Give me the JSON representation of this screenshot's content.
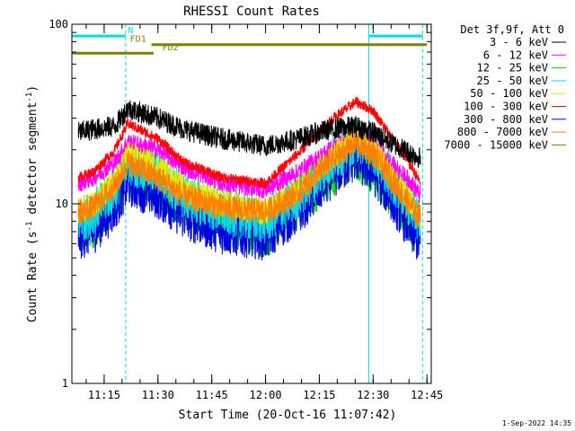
{
  "chart_data": {
    "type": "line",
    "title": "RHESSI Count Rates",
    "xlabel": "Start Time (20-Oct-16 11:07:42)",
    "ylabel_main": "Count Rate (s",
    "ylabel_sup1": "-1",
    "ylabel_mid": " detector segment",
    "ylabel_sup2": "-1",
    "ylabel_end": ")",
    "yscale": "log",
    "ylim": [
      1,
      100
    ],
    "xlim_minutes": [
      11.1,
      12.77
    ],
    "y_tick_labels": [
      {
        "label": "100",
        "value": 100
      },
      {
        "label": "10",
        "value": 10
      },
      {
        "label": "1",
        "value": 1
      }
    ],
    "x_tick_labels": [
      {
        "label": "11:15",
        "value": 11.25
      },
      {
        "label": "11:30",
        "value": 11.5
      },
      {
        "label": "11:45",
        "value": 11.75
      },
      {
        "label": "12:00",
        "value": 12.0
      },
      {
        "label": "12:15",
        "value": 12.25
      },
      {
        "label": "12:30",
        "value": 12.5
      },
      {
        "label": "12:45",
        "value": 12.75
      }
    ],
    "legend_header": "Det 3f,9f, Att 0",
    "legend_position": "right",
    "series": [
      {
        "name": "3 - 6 keV",
        "color": "#000000",
        "x": [
          11.13,
          11.2,
          11.3,
          11.36,
          11.5,
          11.62,
          11.8,
          12.0,
          12.15,
          12.3,
          12.42,
          12.5,
          12.58,
          12.68,
          12.72
        ],
        "y": [
          25,
          26,
          27,
          34,
          30,
          26,
          23,
          21,
          23,
          26,
          27,
          25,
          22,
          19,
          18
        ]
      },
      {
        "name": "6 - 12 keV",
        "color": "#ff00ff",
        "x": [
          11.13,
          11.2,
          11.3,
          11.36,
          11.5,
          11.62,
          11.8,
          12.0,
          12.15,
          12.3,
          12.42,
          12.5,
          12.58,
          12.68,
          12.72
        ],
        "y": [
          13,
          14,
          17,
          22,
          20,
          16,
          13,
          12,
          15,
          20,
          24,
          22,
          17,
          13,
          11
        ]
      },
      {
        "name": "12 - 25 keV",
        "color": "#00d800",
        "x": [
          11.13,
          11.2,
          11.3,
          11.36,
          11.5,
          11.62,
          11.8,
          12.0,
          12.15,
          12.3,
          12.42,
          12.5,
          12.58,
          12.68,
          12.72
        ],
        "y": [
          7,
          8,
          11,
          15,
          13,
          10,
          8,
          7,
          10,
          15,
          19,
          16,
          12,
          8,
          6.5
        ]
      },
      {
        "name": "25 - 50 keV",
        "color": "#00e0e0",
        "x": [
          11.13,
          11.2,
          11.3,
          11.36,
          11.5,
          11.62,
          11.8,
          12.0,
          12.15,
          12.3,
          12.42,
          12.5,
          12.58,
          12.68,
          12.72
        ],
        "y": [
          8,
          9,
          12,
          17,
          15,
          11,
          9,
          8,
          11,
          17,
          23,
          20,
          14,
          9.5,
          8
        ]
      },
      {
        "name": "50 - 100 keV",
        "color": "#e8e800",
        "x": [
          11.13,
          11.2,
          11.3,
          11.36,
          11.5,
          11.62,
          11.8,
          12.0,
          12.15,
          12.3,
          12.42,
          12.5,
          12.58,
          12.68,
          12.72
        ],
        "y": [
          9,
          10,
          13,
          19,
          16,
          12,
          10,
          9,
          12,
          18,
          24,
          21,
          15,
          10,
          8.5
        ]
      },
      {
        "name": "100 - 300 keV",
        "color": "#ff0000",
        "x": [
          11.13,
          11.2,
          11.3,
          11.36,
          11.5,
          11.62,
          11.8,
          12.0,
          12.15,
          12.3,
          12.42,
          12.5,
          12.58,
          12.68,
          12.72
        ],
        "y": [
          14,
          15,
          20,
          28,
          23,
          17,
          14,
          13,
          19,
          29,
          37,
          33,
          24,
          16,
          13
        ]
      },
      {
        "name": "300 - 800 keV",
        "color": "#0000e0",
        "x": [
          11.13,
          11.2,
          11.3,
          11.36,
          11.5,
          11.62,
          11.8,
          12.0,
          12.15,
          12.3,
          12.42,
          12.5,
          12.58,
          12.68,
          12.72
        ],
        "y": [
          6.5,
          7,
          9.5,
          13,
          11,
          8.5,
          7,
          6.5,
          9,
          14,
          18,
          15,
          11,
          7,
          6
        ]
      },
      {
        "name": "800 - 7000 keV",
        "color": "#ff8000",
        "x": [
          11.13,
          11.2,
          11.3,
          11.36,
          11.5,
          11.62,
          11.8,
          12.0,
          12.15,
          12.3,
          12.42,
          12.5,
          12.58,
          12.68,
          12.72
        ],
        "y": [
          9,
          9.5,
          12.5,
          17,
          14,
          11,
          9.5,
          9,
          11.5,
          17,
          22,
          19,
          14,
          9.5,
          8.5
        ]
      },
      {
        "name": "7000 - 15000 keV",
        "color": "#808000",
        "x": [],
        "y": []
      }
    ],
    "state_bars": [
      {
        "label": "N",
        "color": "#00e0e0",
        "segments": [
          [
            11.1,
            11.35
          ],
          [
            12.48,
            12.73
          ]
        ],
        "level": 86,
        "label_at": 11.36
      },
      {
        "label": "FD1",
        "color": "#808000",
        "segments": [
          [
            11.47,
            12.75
          ]
        ],
        "level": 77,
        "label_at": 11.37
      },
      {
        "label": "FD2",
        "color": "#808000",
        "segments": [
          [
            11.1,
            11.48
          ]
        ],
        "level": 69,
        "label_at": 11.52
      }
    ],
    "vertical_lines": [
      {
        "x": 11.1,
        "color": "#00e0e0",
        "style": "solid"
      },
      {
        "x": 11.35,
        "color": "#00e0e0",
        "style": "dashed"
      },
      {
        "x": 12.48,
        "color": "#00e0e0",
        "style": "solid"
      },
      {
        "x": 12.73,
        "color": "#00e0e0",
        "style": "dashed"
      }
    ],
    "timestamp": "1-Sep-2022 14:35"
  }
}
